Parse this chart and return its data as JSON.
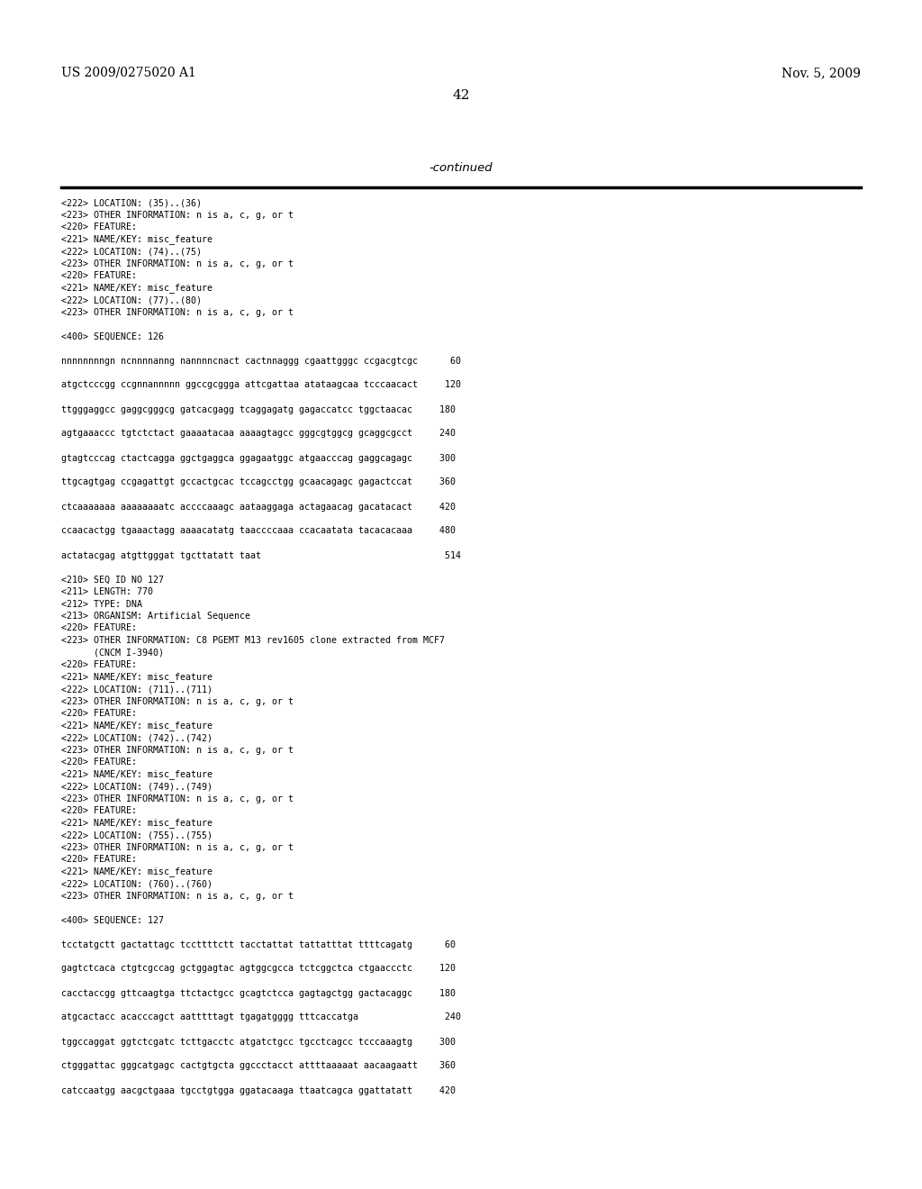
{
  "background_color": "#ffffff",
  "header_left": "US 2009/0275020 A1",
  "header_right": "Nov. 5, 2009",
  "page_number": "42",
  "continued_text": "-continued",
  "content": [
    "<222> LOCATION: (35)..(36)",
    "<223> OTHER INFORMATION: n is a, c, g, or t",
    "<220> FEATURE:",
    "<221> NAME/KEY: misc_feature",
    "<222> LOCATION: (74)..(75)",
    "<223> OTHER INFORMATION: n is a, c, g, or t",
    "<220> FEATURE:",
    "<221> NAME/KEY: misc_feature",
    "<222> LOCATION: (77)..(80)",
    "<223> OTHER INFORMATION: n is a, c, g, or t",
    "",
    "<400> SEQUENCE: 126",
    "",
    "nnnnnnnngn ncnnnnanng nannnncnact cactnnaggg cgaattgggc ccgacgtcgc      60",
    "",
    "atgctcccgg ccgnnannnnn ggccgcggga attcgattaa atataagcaa tcccaacact     120",
    "",
    "ttgggaggcc gaggcgggcg gatcacgagg tcaggagatg gagaccatcc tggctaacac     180",
    "",
    "agtgaaaccc tgtctctact gaaaatacaa aaaagtagcc gggcgtggcg gcaggcgcct     240",
    "",
    "gtagtcccag ctactcagga ggctgaggca ggagaatggc atgaacccag gaggcagagc     300",
    "",
    "ttgcagtgag ccgagattgt gccactgcac tccagcctgg gcaacagagc gagactccat     360",
    "",
    "ctcaaaaaaa aaaaaaaatc accccaaagc aataaggaga actagaacag gacatacact     420",
    "",
    "ccaacactgg tgaaactagg aaaacatatg taaccccaaa ccacaatata tacacacaaa     480",
    "",
    "actatacgag atgttgggat tgcttatatt taat                                  514",
    "",
    "<210> SEQ ID NO 127",
    "<211> LENGTH: 770",
    "<212> TYPE: DNA",
    "<213> ORGANISM: Artificial Sequence",
    "<220> FEATURE:",
    "<223> OTHER INFORMATION: C8 PGEMT M13 rev1605 clone extracted from MCF7",
    "      (CNCM I-3940)",
    "<220> FEATURE:",
    "<221> NAME/KEY: misc_feature",
    "<222> LOCATION: (711)..(711)",
    "<223> OTHER INFORMATION: n is a, c, g, or t",
    "<220> FEATURE:",
    "<221> NAME/KEY: misc_feature",
    "<222> LOCATION: (742)..(742)",
    "<223> OTHER INFORMATION: n is a, c, g, or t",
    "<220> FEATURE:",
    "<221> NAME/KEY: misc_feature",
    "<222> LOCATION: (749)..(749)",
    "<223> OTHER INFORMATION: n is a, c, g, or t",
    "<220> FEATURE:",
    "<221> NAME/KEY: misc_feature",
    "<222> LOCATION: (755)..(755)",
    "<223> OTHER INFORMATION: n is a, c, g, or t",
    "<220> FEATURE:",
    "<221> NAME/KEY: misc_feature",
    "<222> LOCATION: (760)..(760)",
    "<223> OTHER INFORMATION: n is a, c, g, or t",
    "",
    "<400> SEQUENCE: 127",
    "",
    "tcctatgctt gactattagc tccttttctt tacctattat tattatttat ttttcagatg      60",
    "",
    "gagtctcaca ctgtcgccag gctggagtac agtggcgcca tctcggctca ctgaaccctc     120",
    "",
    "cacctaccgg gttcaagtga ttctactgcc gcagtctcca gagtagctgg gactacaggc     180",
    "",
    "atgcactacc acacccagct aatttttagt tgagatgggg tttcaccatga                240",
    "",
    "tggccaggat ggtctcgatc tcttgacctc atgatctgcc tgcctcagcc tcccaaagtg     300",
    "",
    "ctgggattac gggcatgagc cactgtgcta ggccctacct attttaaaaat aacaagaatt    360",
    "",
    "catccaatgg aacgctgaaa tgcctgtgga ggatacaaga ttaatcagca ggattatatt     420"
  ]
}
